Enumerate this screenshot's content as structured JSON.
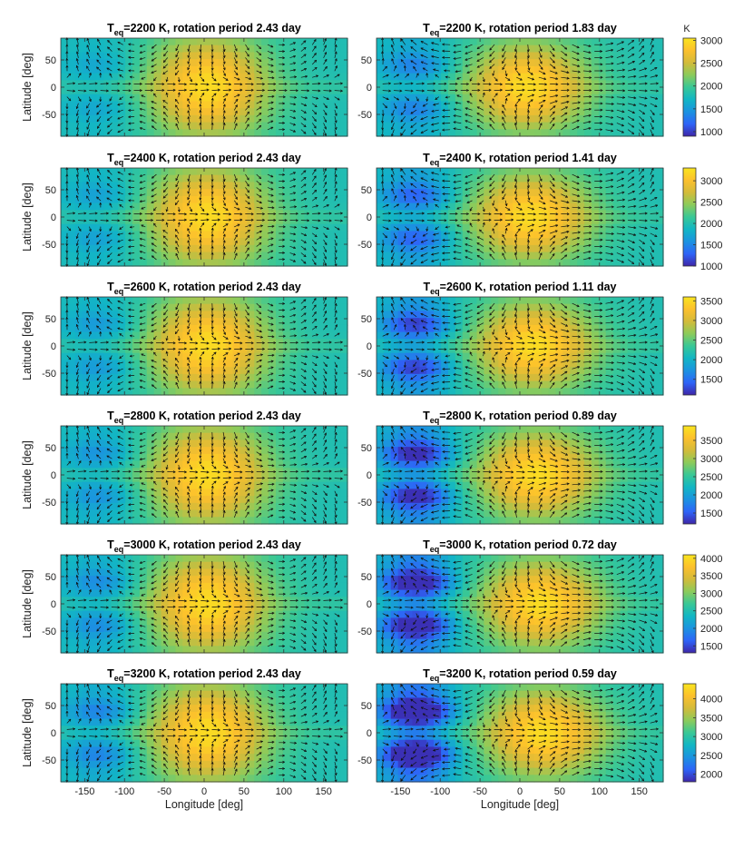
{
  "chart_data": {
    "type": "heatmap",
    "description_fields": "temperature maps with wind vectors, 6 rows x 2 columns",
    "xlabel": "Longitude [deg]",
    "ylabel": "Latitude [deg]",
    "xlim": [
      -180,
      180
    ],
    "ylim": [
      -90,
      90
    ],
    "xticks": [
      -150,
      -100,
      -50,
      0,
      50,
      100,
      150
    ],
    "yticks": [
      -50,
      0,
      50
    ],
    "colorbar_unit": "K",
    "colormap": [
      "#3e26a8",
      "#2e64f8",
      "#1b93e0",
      "#12b6c4",
      "#39c896",
      "#8ccb5b",
      "#d3bb3a",
      "#fcc02d",
      "#f9e51e"
    ],
    "panels": [
      {
        "title_pre": "T",
        "title_sub": "eq",
        "title_post": "=2200 K, rotation period 2.43 day",
        "teq": 2200,
        "period_day": 2.43,
        "colorbar": null
      },
      {
        "title_pre": "T",
        "title_sub": "eq",
        "title_post": "=2200 K, rotation period 1.83 day",
        "teq": 2200,
        "period_day": 1.83,
        "colorbar": {
          "min": 900,
          "max": 3050,
          "ticks": [
            "3000",
            "2500",
            "2000",
            "1500",
            "1000"
          ],
          "tick_values": [
            3000,
            2500,
            2000,
            1500,
            1000
          ]
        }
      },
      {
        "title_pre": "T",
        "title_sub": "eq",
        "title_post": "=2400 K, rotation period 2.43 day",
        "teq": 2400,
        "period_day": 2.43,
        "colorbar": null
      },
      {
        "title_pre": "T",
        "title_sub": "eq",
        "title_post": "=2400 K, rotation period 1.41 day",
        "teq": 2400,
        "period_day": 1.41,
        "colorbar": {
          "min": 1000,
          "max": 3300,
          "ticks": [
            "3000",
            "2500",
            "2000",
            "1500",
            "1000"
          ],
          "tick_values": [
            3000,
            2500,
            2000,
            1500,
            1000
          ]
        }
      },
      {
        "title_pre": "T",
        "title_sub": "eq",
        "title_post": "=2600 K, rotation period 2.43 day",
        "teq": 2600,
        "period_day": 2.43,
        "colorbar": null
      },
      {
        "title_pre": "T",
        "title_sub": "eq",
        "title_post": "=2600 K, rotation period 1.11 day",
        "teq": 2600,
        "period_day": 1.11,
        "colorbar": {
          "min": 1100,
          "max": 3600,
          "ticks": [
            "3500",
            "3000",
            "2500",
            "2000",
            "1500"
          ],
          "tick_values": [
            3500,
            3000,
            2500,
            2000,
            1500
          ]
        }
      },
      {
        "title_pre": "T",
        "title_sub": "eq",
        "title_post": "=2800 K, rotation period 2.43 day",
        "teq": 2800,
        "period_day": 2.43,
        "colorbar": null
      },
      {
        "title_pre": "T",
        "title_sub": "eq",
        "title_post": "=2800 K, rotation period 0.89 day",
        "teq": 2800,
        "period_day": 0.89,
        "colorbar": {
          "min": 1200,
          "max": 3900,
          "ticks": [
            "3500",
            "3000",
            "2500",
            "2000",
            "1500"
          ],
          "tick_values": [
            3500,
            3000,
            2500,
            2000,
            1500
          ]
        }
      },
      {
        "title_pre": "T",
        "title_sub": "eq",
        "title_post": "=3000 K, rotation period 2.43 day",
        "teq": 3000,
        "period_day": 2.43,
        "colorbar": null
      },
      {
        "title_pre": "T",
        "title_sub": "eq",
        "title_post": "=3000 K, rotation period 0.72 day",
        "teq": 3000,
        "period_day": 0.72,
        "colorbar": {
          "min": 1300,
          "max": 4100,
          "ticks": [
            "4000",
            "3500",
            "3000",
            "2500",
            "2000",
            "1500"
          ],
          "tick_values": [
            4000,
            3500,
            3000,
            2500,
            2000,
            1500
          ]
        }
      },
      {
        "title_pre": "T",
        "title_sub": "eq",
        "title_post": "=3200 K, rotation period 2.43 day",
        "teq": 3200,
        "period_day": 2.43,
        "colorbar": null
      },
      {
        "title_pre": "T",
        "title_sub": "eq",
        "title_post": "=3200 K, rotation period 0.59 day",
        "teq": 3200,
        "period_day": 0.59,
        "colorbar": {
          "min": 1800,
          "max": 4400,
          "ticks": [
            "4000",
            "3500",
            "3000",
            "2500",
            "2000"
          ],
          "tick_values": [
            4000,
            3500,
            3000,
            2500,
            2000
          ]
        }
      }
    ]
  }
}
